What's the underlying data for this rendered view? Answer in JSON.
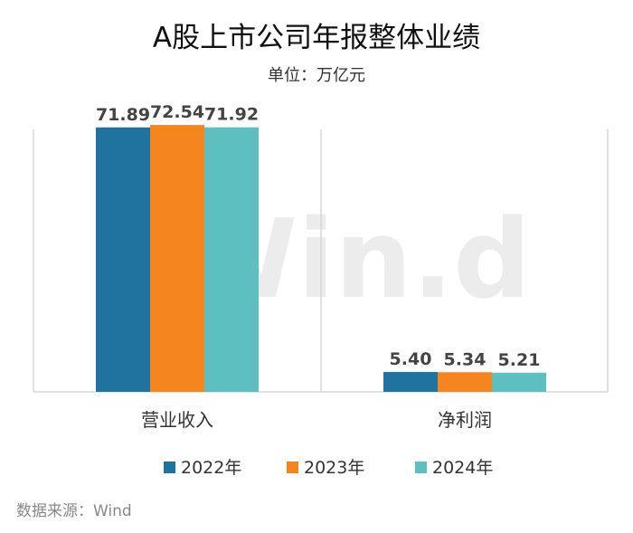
{
  "title": "A股上市公司年报整体业绩",
  "subtitle": "单位：万亿元",
  "source": "数据来源：Wind",
  "watermark": "Win.d",
  "chart_data": {
    "type": "bar",
    "categories": [
      "营业收入",
      "净利润"
    ],
    "series": [
      {
        "name": "2022年",
        "color": "#21739f",
        "values": [
          71.89,
          5.4
        ]
      },
      {
        "name": "2023年",
        "color": "#f5861f",
        "values": [
          72.54,
          5.34
        ]
      },
      {
        "name": "2024年",
        "color": "#5dbfbf",
        "values": [
          71.92,
          5.21
        ]
      }
    ],
    "value_labels": [
      [
        "71.89",
        "5.40"
      ],
      [
        "72.54",
        "5.34"
      ],
      [
        "71.92",
        "5.21"
      ]
    ],
    "ylim": [
      0,
      77
    ],
    "grid": false,
    "legend_position": "bottom"
  }
}
